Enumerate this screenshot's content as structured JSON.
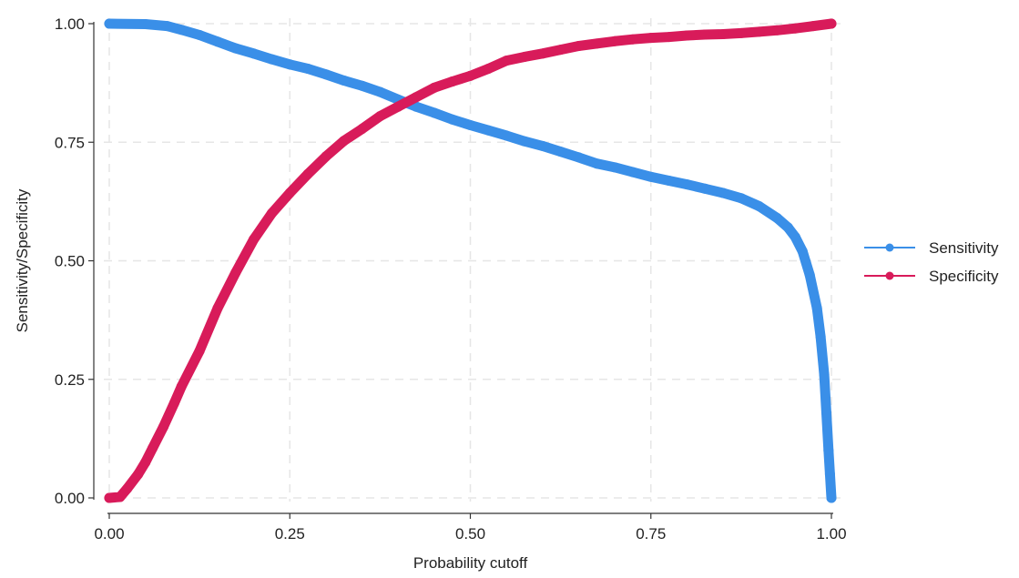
{
  "chart_data": {
    "type": "line",
    "title": "",
    "xlabel": "Probability cutoff",
    "ylabel": "Sensitivity/Specificity",
    "xlim": [
      0,
      1
    ],
    "ylim": [
      0,
      1
    ],
    "x_ticks": [
      0,
      0.25,
      0.5,
      0.75,
      1
    ],
    "x_tick_labels": [
      "0.00",
      "0.25",
      "0.50",
      "0.75",
      "1.00"
    ],
    "y_ticks": [
      0,
      0.25,
      0.5,
      0.75,
      1
    ],
    "y_tick_labels": [
      "0.00",
      "0.25",
      "0.50",
      "0.75",
      "1.00"
    ],
    "grid": true,
    "legend_position": "right",
    "series": [
      {
        "name": "Sensitivity",
        "color": "#3a8fe8",
        "points": [
          [
            0.0,
            1.0
          ],
          [
            0.05,
            0.999
          ],
          [
            0.08,
            0.995
          ],
          [
            0.1,
            0.987
          ],
          [
            0.125,
            0.976
          ],
          [
            0.15,
            0.962
          ],
          [
            0.175,
            0.948
          ],
          [
            0.2,
            0.937
          ],
          [
            0.225,
            0.925
          ],
          [
            0.25,
            0.914
          ],
          [
            0.275,
            0.905
          ],
          [
            0.3,
            0.893
          ],
          [
            0.325,
            0.88
          ],
          [
            0.35,
            0.869
          ],
          [
            0.375,
            0.856
          ],
          [
            0.4,
            0.84
          ],
          [
            0.425,
            0.825
          ],
          [
            0.45,
            0.812
          ],
          [
            0.475,
            0.798
          ],
          [
            0.5,
            0.786
          ],
          [
            0.525,
            0.775
          ],
          [
            0.55,
            0.764
          ],
          [
            0.575,
            0.752
          ],
          [
            0.6,
            0.742
          ],
          [
            0.625,
            0.73
          ],
          [
            0.65,
            0.718
          ],
          [
            0.675,
            0.705
          ],
          [
            0.7,
            0.697
          ],
          [
            0.725,
            0.687
          ],
          [
            0.75,
            0.677
          ],
          [
            0.775,
            0.669
          ],
          [
            0.8,
            0.661
          ],
          [
            0.825,
            0.652
          ],
          [
            0.85,
            0.643
          ],
          [
            0.875,
            0.632
          ],
          [
            0.9,
            0.615
          ],
          [
            0.925,
            0.59
          ],
          [
            0.94,
            0.57
          ],
          [
            0.95,
            0.55
          ],
          [
            0.96,
            0.52
          ],
          [
            0.97,
            0.47
          ],
          [
            0.98,
            0.4
          ],
          [
            0.985,
            0.34
          ],
          [
            0.99,
            0.26
          ],
          [
            0.993,
            0.18
          ],
          [
            0.996,
            0.1
          ],
          [
            0.998,
            0.05
          ],
          [
            1.0,
            0.0
          ]
        ]
      },
      {
        "name": "Specificity",
        "color": "#d81b5a",
        "points": [
          [
            0.0,
            0.0
          ],
          [
            0.015,
            0.002
          ],
          [
            0.025,
            0.02
          ],
          [
            0.04,
            0.05
          ],
          [
            0.05,
            0.075
          ],
          [
            0.06,
            0.105
          ],
          [
            0.075,
            0.15
          ],
          [
            0.09,
            0.2
          ],
          [
            0.1,
            0.235
          ],
          [
            0.125,
            0.31
          ],
          [
            0.15,
            0.4
          ],
          [
            0.175,
            0.475
          ],
          [
            0.2,
            0.545
          ],
          [
            0.225,
            0.6
          ],
          [
            0.25,
            0.643
          ],
          [
            0.275,
            0.683
          ],
          [
            0.3,
            0.72
          ],
          [
            0.325,
            0.753
          ],
          [
            0.35,
            0.778
          ],
          [
            0.375,
            0.805
          ],
          [
            0.4,
            0.825
          ],
          [
            0.425,
            0.845
          ],
          [
            0.45,
            0.865
          ],
          [
            0.475,
            0.878
          ],
          [
            0.5,
            0.89
          ],
          [
            0.525,
            0.905
          ],
          [
            0.55,
            0.922
          ],
          [
            0.575,
            0.93
          ],
          [
            0.6,
            0.937
          ],
          [
            0.625,
            0.945
          ],
          [
            0.65,
            0.953
          ],
          [
            0.675,
            0.958
          ],
          [
            0.7,
            0.963
          ],
          [
            0.725,
            0.967
          ],
          [
            0.75,
            0.97
          ],
          [
            0.775,
            0.972
          ],
          [
            0.8,
            0.975
          ],
          [
            0.825,
            0.977
          ],
          [
            0.85,
            0.978
          ],
          [
            0.875,
            0.98
          ],
          [
            0.9,
            0.983
          ],
          [
            0.925,
            0.986
          ],
          [
            0.95,
            0.99
          ],
          [
            0.975,
            0.995
          ],
          [
            1.0,
            1.0
          ]
        ]
      }
    ]
  }
}
